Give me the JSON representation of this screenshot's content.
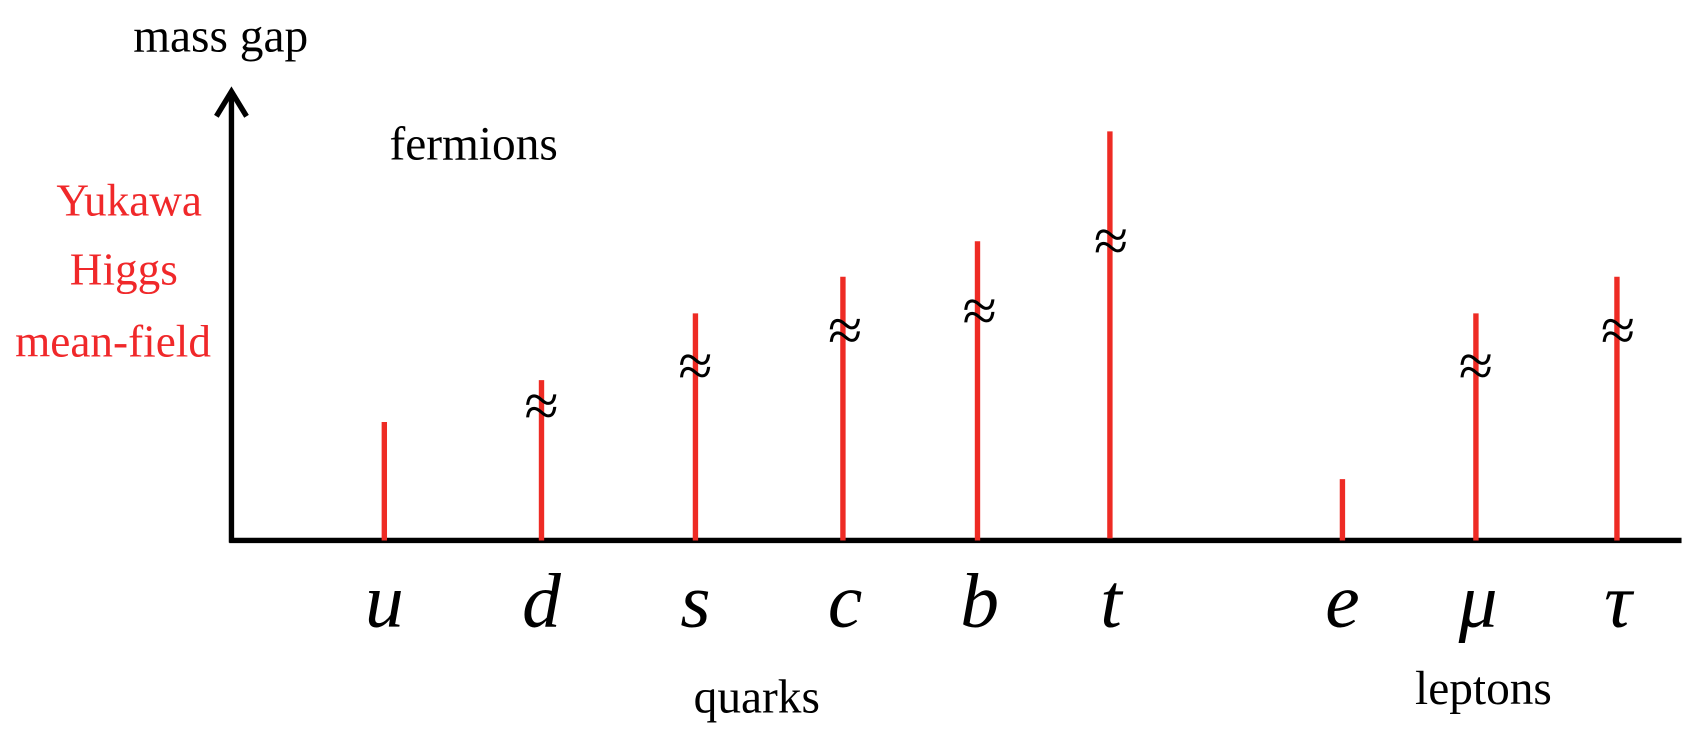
{
  "axis_label": "mass gap",
  "title": "fermions",
  "mechanism": [
    "Yukawa",
    "Higgs",
    "mean-field"
  ],
  "particles": [
    "u",
    "d",
    "s",
    "c",
    "b",
    "t",
    "e",
    "μ",
    "τ"
  ],
  "gap_marks": [
    "≈",
    "≈",
    "≈",
    "≈",
    "≈",
    "≈",
    "≈"
  ],
  "groups": [
    "quarks",
    "leptons"
  ]
}
